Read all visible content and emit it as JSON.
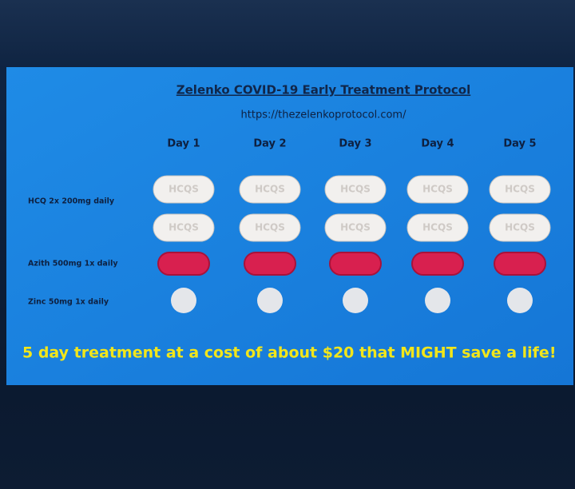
{
  "header": {
    "title": "Zelenko COVID-19 Early Treatment Protocol",
    "url": "https://thezelenkoprotocol.com/"
  },
  "days": [
    "Day 1",
    "Day 2",
    "Day 3",
    "Day 4",
    "Day 5"
  ],
  "rows": [
    {
      "label": "HCQ 2x 200mg daily",
      "pill_imprint": "HCQS"
    },
    {
      "label": "Azith 500mg 1x daily"
    },
    {
      "label": "Zinc 50mg 1x daily"
    }
  ],
  "footer": "5 day treatment at a cost of about $20 that MIGHT save a life!"
}
